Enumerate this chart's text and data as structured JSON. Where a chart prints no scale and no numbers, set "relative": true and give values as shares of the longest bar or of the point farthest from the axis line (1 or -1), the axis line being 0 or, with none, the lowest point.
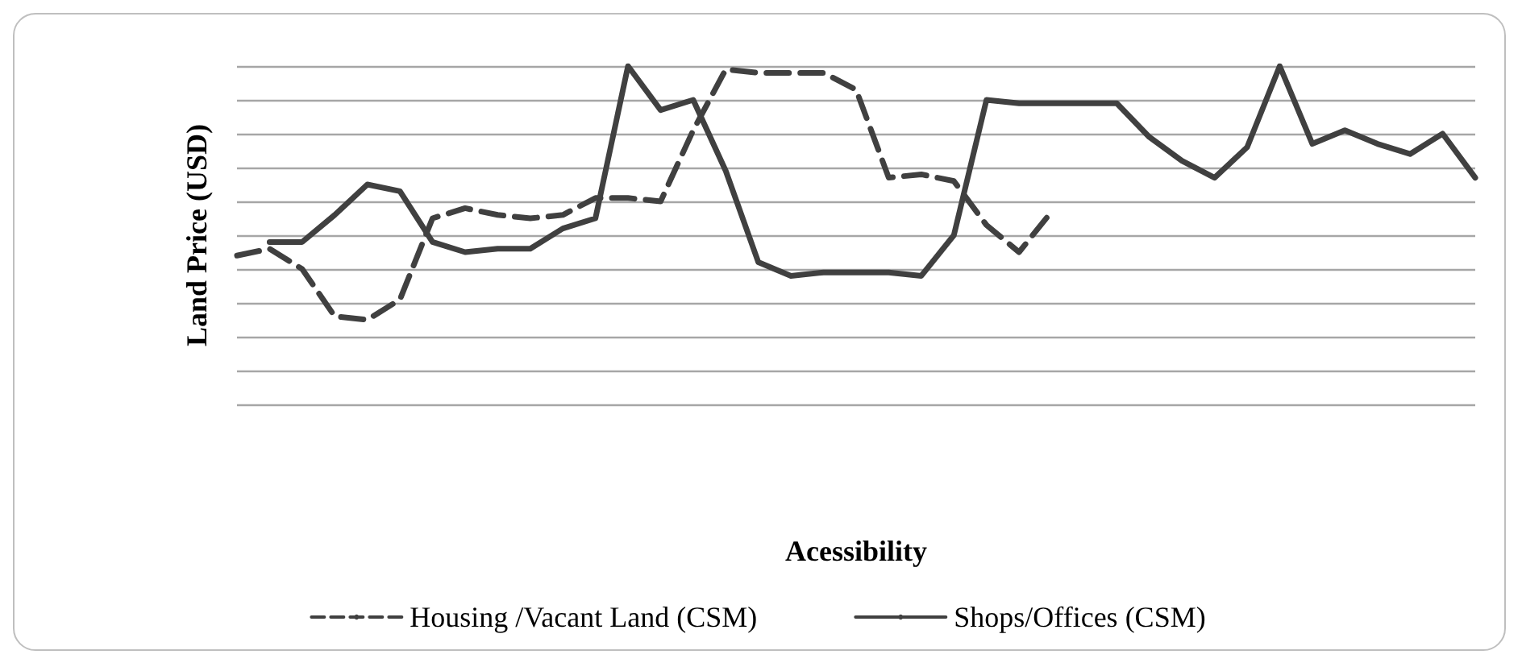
{
  "chart_data": {
    "type": "line",
    "relative": true,
    "ylabel": "Land Price (USD)",
    "xlabel": "Acessibility",
    "grid": "y",
    "legend": "bottom",
    "marker": "none",
    "categories": [
      null,
      null,
      null,
      null,
      null,
      null,
      null,
      null,
      null,
      null,
      null,
      null,
      null,
      null,
      null,
      null,
      null,
      null,
      null,
      null,
      null,
      null,
      null,
      null,
      null,
      null,
      null,
      null,
      null,
      null,
      null,
      null,
      null,
      null,
      null,
      null,
      null,
      null,
      null
    ],
    "series": [
      {
        "name": "Housing /Vacant Land (CSM)",
        "color": "#404040",
        "line_style": "dashed",
        "values": [
          0.44,
          0.46,
          0.4,
          0.26,
          0.25,
          0.31,
          0.55,
          0.58,
          0.56,
          0.55,
          0.56,
          0.61,
          0.61,
          0.6,
          0.81,
          0.99,
          0.98,
          0.98,
          0.98,
          0.93,
          0.67,
          0.68,
          0.66,
          0.53,
          0.45,
          0.57,
          null,
          null,
          null,
          null,
          null,
          null,
          null,
          null,
          null,
          null,
          null,
          null,
          null
        ]
      },
      {
        "name": "Shops/Offices (CSM)",
        "color": "#404040",
        "line_style": "solid",
        "values": [
          null,
          0.48,
          0.48,
          0.56,
          0.65,
          0.63,
          0.48,
          0.45,
          0.46,
          0.46,
          0.52,
          0.55,
          1.0,
          0.87,
          0.9,
          0.69,
          0.42,
          0.38,
          0.39,
          0.39,
          0.39,
          0.38,
          0.5,
          0.9,
          0.89,
          0.89,
          0.89,
          0.89,
          0.79,
          0.72,
          0.67,
          0.76,
          1.0,
          0.77,
          0.81,
          0.77,
          0.74,
          0.8,
          0.67
        ]
      }
    ]
  }
}
